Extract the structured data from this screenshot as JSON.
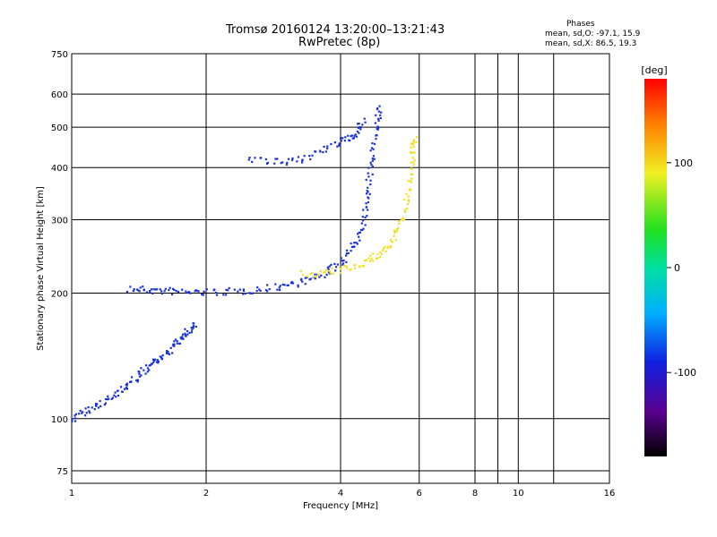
{
  "header": {
    "title_line1": "Tromsø 20160124 13:20:00–13:21:43",
    "title_line2": "RwPretec (8p)",
    "phase_title": "Phases",
    "phase_o": "mean, sd,O: -97.1, 15.9",
    "phase_x": "mean, sd,X: 86.5, 19.3"
  },
  "chart_data": {
    "type": "scatter",
    "xlabel": "Frequency [MHz]",
    "ylabel": "Stationary phase Virtual Height [km]",
    "x_scale": "log",
    "y_scale": "log",
    "xlim": [
      1,
      16
    ],
    "ylim": [
      70,
      750
    ],
    "x_ticks": [
      1,
      2,
      4,
      6,
      8,
      10,
      16
    ],
    "x_tick_labels": [
      "1",
      "2",
      "4",
      "6",
      "8",
      "10",
      "16"
    ],
    "y_ticks": [
      75,
      100,
      200,
      300,
      400,
      500,
      600,
      750
    ],
    "y_tick_labels": [
      "75",
      "100",
      "200",
      "300",
      "400",
      "500",
      "600",
      "750"
    ],
    "grid": true,
    "colorbar": {
      "label": "[deg]",
      "range": [
        -180,
        180
      ],
      "ticks": [
        100,
        0,
        -100
      ],
      "tick_labels": [
        "100",
        "0",
        "-100"
      ]
    },
    "series": [
      {
        "trace": "O-mode F-layer trace (blue)",
        "color": "#1830d8",
        "phase_deg": -97,
        "points": [
          [
            1.35,
            205
          ],
          [
            1.5,
            203
          ],
          [
            1.7,
            202
          ],
          [
            2.0,
            201
          ],
          [
            2.4,
            202
          ],
          [
            2.8,
            206
          ],
          [
            3.2,
            212
          ],
          [
            3.6,
            220
          ],
          [
            4.0,
            235
          ],
          [
            4.3,
            260
          ],
          [
            4.5,
            300
          ],
          [
            4.6,
            350
          ],
          [
            4.7,
            420
          ],
          [
            4.8,
            500
          ],
          [
            4.9,
            560
          ]
        ]
      },
      {
        "trace": "X-mode F-layer trace (yellow)",
        "color": "#f0e020",
        "phase_deg": 86,
        "points": [
          [
            3.3,
            222
          ],
          [
            3.8,
            224
          ],
          [
            4.3,
            232
          ],
          [
            4.8,
            245
          ],
          [
            5.2,
            262
          ],
          [
            5.5,
            300
          ],
          [
            5.7,
            360
          ],
          [
            5.8,
            430
          ],
          [
            5.85,
            480
          ]
        ]
      },
      {
        "trace": "Upper O-mode echo (blue)",
        "color": "#1830d8",
        "phase_deg": -97,
        "points": [
          [
            2.5,
            420
          ],
          [
            3.0,
            410
          ],
          [
            3.5,
            430
          ],
          [
            4.0,
            460
          ],
          [
            4.3,
            480
          ],
          [
            4.5,
            520
          ]
        ]
      },
      {
        "trace": "Lower scattered echoes (blue)",
        "color": "#1830d8",
        "phase_deg": -100,
        "points": [
          [
            1.0,
            100
          ],
          [
            1.1,
            105
          ],
          [
            1.2,
            110
          ],
          [
            1.3,
            118
          ],
          [
            1.4,
            125
          ],
          [
            1.5,
            135
          ],
          [
            1.6,
            140
          ],
          [
            1.7,
            150
          ],
          [
            1.8,
            160
          ],
          [
            1.9,
            170
          ]
        ]
      }
    ]
  }
}
